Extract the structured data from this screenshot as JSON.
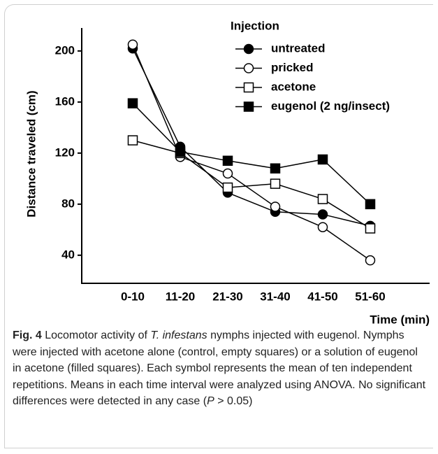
{
  "chart_data": {
    "type": "line",
    "legend_title": "Injection",
    "xlabel": "Time (min)",
    "ylabel": "Distance traveled (cm)",
    "categories": [
      "0-10",
      "11-20",
      "21-30",
      "31-40",
      "41-50",
      "51-60"
    ],
    "series": [
      {
        "name": "untreated",
        "color": "#000000",
        "marker": "circle",
        "filled": true,
        "values": [
          202,
          125,
          89,
          74,
          72,
          63
        ]
      },
      {
        "name": "pricked",
        "color": "#000000",
        "marker": "circle",
        "filled": false,
        "values": [
          205,
          117,
          104,
          78,
          62,
          36
        ]
      },
      {
        "name": "acetone",
        "color": "#000000",
        "marker": "square",
        "filled": false,
        "values": [
          130,
          120,
          93,
          96,
          84,
          61
        ]
      },
      {
        "name": "eugenol (2 ng/insect)",
        "color": "#000000",
        "marker": "square",
        "filled": true,
        "values": [
          159,
          121,
          114,
          108,
          115,
          80
        ]
      }
    ],
    "ylim": [
      18,
      218
    ],
    "yticks": [
      40,
      80,
      120,
      160,
      200
    ],
    "legend": "upper right"
  },
  "caption": {
    "label": "Fig. 4",
    "parts": [
      " Locomotor activity of ",
      "T. infestans",
      " nymphs injected with eugenol. Nymphs were injected with acetone alone (control, empty squares) or a solution of eugenol in acetone (filled squares). Each symbol represents the mean of ten independent repetitions. Means in each time interval were analyzed using ANOVA. No significant differences were detected in any case (",
      "P",
      " > 0.05)"
    ]
  }
}
